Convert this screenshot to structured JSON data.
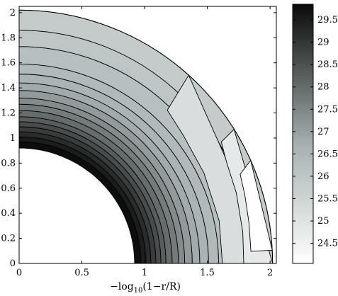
{
  "chart_data": {
    "type": "heatmap",
    "subtype": "filled-contour quarter annulus",
    "title": "",
    "xlabel": "−log",
    "xlabel_sub": "10",
    "xlabel_suffix": "(1−r/R)",
    "ylabel": "",
    "xlim": [
      0,
      2.05
    ],
    "ylim": [
      0,
      2.05
    ],
    "x_ticks": [
      {
        "value": 0,
        "label": "0"
      },
      {
        "value": 0.5,
        "label": "0.5"
      },
      {
        "value": 1,
        "label": "1"
      },
      {
        "value": 1.5,
        "label": "1.5"
      },
      {
        "value": 2,
        "label": "2"
      }
    ],
    "y_ticks": [
      {
        "value": 0,
        "label": "0"
      },
      {
        "value": 0.2,
        "label": "0.2"
      },
      {
        "value": 0.4,
        "label": "0.4"
      },
      {
        "value": 0.6,
        "label": "0.6"
      },
      {
        "value": 0.8,
        "label": "0.8"
      },
      {
        "value": 1,
        "label": "1"
      },
      {
        "value": 1.2,
        "label": "1.2"
      },
      {
        "value": 1.4,
        "label": "1.4"
      },
      {
        "value": 1.6,
        "label": "1.6"
      },
      {
        "value": 1.8,
        "label": "1.8"
      },
      {
        "value": 2,
        "label": "2"
      }
    ],
    "inner_radius": 0.92,
    "outer_radius": 2.02,
    "contour_radii": [
      0.92,
      0.97,
      1.01,
      1.05,
      1.09,
      1.13,
      1.17,
      1.22,
      1.27,
      1.32,
      1.38,
      1.44,
      1.51,
      1.59,
      1.73,
      1.86
    ],
    "contour_values": [
      29.8,
      29.5,
      29.2,
      28.9,
      28.6,
      28.3,
      28.0,
      27.7,
      27.4,
      27.1,
      26.8,
      26.6,
      26.4,
      26.2,
      26.0,
      25.8
    ],
    "outer_band_values": [
      25.2,
      24.8
    ],
    "colorbar": {
      "min": 24.05,
      "max": 29.85,
      "ticks": [
        24.5,
        25,
        25.5,
        26,
        26.5,
        27,
        27.5,
        28,
        28.5,
        29,
        29.5
      ],
      "tick_labels": [
        "24.5",
        "25",
        "25.5",
        "26",
        "26.5",
        "27",
        "27.5",
        "28",
        "28.5",
        "29",
        "29.5"
      ],
      "color_low": "#ffffff",
      "color_mid": "#a8b2b2",
      "color_high": "#0a0a0a"
    },
    "grid": false,
    "legend": "colorbar-right"
  }
}
